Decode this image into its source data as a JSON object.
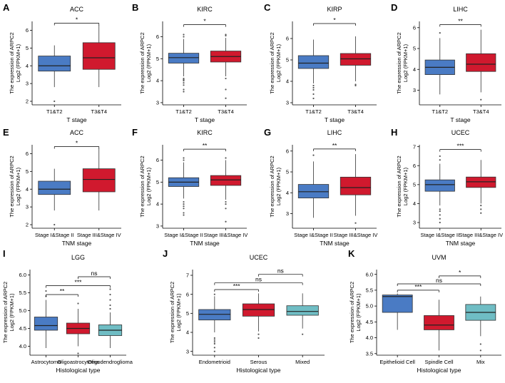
{
  "colors": {
    "blue": "#4a7bc4",
    "red": "#d0192e",
    "teal": "#6fbdc4"
  },
  "chart_data": [
    {
      "label": "A",
      "type": "box",
      "title": "ACC",
      "xlabel": "T stage",
      "ylabel_line1": "The expression of ARPC2",
      "ylabel_line2": "Log2 (FPKM+1)",
      "ylim": [
        1.8,
        6.5
      ],
      "yticks": [
        "2",
        "3",
        "4",
        "5",
        "6"
      ],
      "categories": [
        "T1&T2",
        "T3&T4"
      ],
      "boxes": [
        {
          "name": "T1&T2",
          "color": "blue",
          "min": 2.8,
          "q1": 3.7,
          "median": 4.0,
          "q3": 4.55,
          "max": 5.15,
          "outliers": [
            2.0
          ]
        },
        {
          "name": "T3&T4",
          "color": "red",
          "min": 2.8,
          "q1": 3.8,
          "median": 4.45,
          "q3": 5.3,
          "max": 6.3,
          "outliers": []
        }
      ],
      "comparisons": [
        {
          "from": 0,
          "to": 1,
          "label": "*",
          "y": 6.4
        }
      ]
    },
    {
      "label": "B",
      "type": "box",
      "title": "KIRC",
      "xlabel": "T stage",
      "ylabel_line1": "The expression of ARPC2",
      "ylabel_line2": "Log2 (FPKM+1)",
      "ylim": [
        2.9,
        6.7
      ],
      "yticks": [
        "3",
        "4",
        "5",
        "6"
      ],
      "categories": [
        "T1&T2",
        "T3&T4"
      ],
      "boxes": [
        {
          "name": "T1&T2",
          "color": "blue",
          "min": 4.2,
          "q1": 4.8,
          "median": 5.05,
          "q3": 5.25,
          "max": 5.9,
          "outliers": [
            3.5,
            3.6,
            3.8,
            3.9,
            4.0,
            4.05,
            4.1,
            6.0,
            6.1
          ]
        },
        {
          "name": "T3&T4",
          "color": "red",
          "min": 4.2,
          "q1": 4.85,
          "median": 5.1,
          "q3": 5.35,
          "max": 5.95,
          "outliers": [
            3.2,
            3.6,
            4.1,
            6.05,
            6.1
          ]
        }
      ],
      "comparisons": [
        {
          "from": 0,
          "to": 1,
          "label": "*",
          "y": 6.55
        }
      ]
    },
    {
      "label": "C",
      "type": "box",
      "title": "KIRP",
      "xlabel": "T stage",
      "ylabel_line1": "The expression of ARPC2",
      "ylabel_line2": "Log2 (FPKM+1)",
      "ylim": [
        2.9,
        6.8
      ],
      "yticks": [
        "3",
        "4",
        "5",
        "6"
      ],
      "categories": [
        "T1&T2",
        "T3&T4"
      ],
      "boxes": [
        {
          "name": "T1&T2",
          "color": "blue",
          "min": 3.9,
          "q1": 4.6,
          "median": 4.85,
          "q3": 5.2,
          "max": 5.95,
          "outliers": [
            3.2,
            3.4,
            3.6,
            3.7,
            3.8
          ]
        },
        {
          "name": "T3&T4",
          "color": "red",
          "min": 4.0,
          "q1": 4.75,
          "median": 5.05,
          "q3": 5.3,
          "max": 6.1,
          "outliers": [
            3.8,
            3.85
          ]
        }
      ],
      "comparisons": [
        {
          "from": 0,
          "to": 1,
          "label": "*",
          "y": 6.7
        }
      ]
    },
    {
      "label": "D",
      "type": "box",
      "title": "LIHC",
      "xlabel": "T stage",
      "ylabel_line1": "The expression of ARPC2",
      "ylabel_line2": "Log2 (FPKM+1)",
      "ylim": [
        2.3,
        6.3
      ],
      "yticks": [
        "3",
        "4",
        "5",
        "6"
      ],
      "categories": [
        "T1&T2",
        "T3&T4"
      ],
      "boxes": [
        {
          "name": "T1&T2",
          "color": "blue",
          "min": 2.8,
          "q1": 3.75,
          "median": 4.1,
          "q3": 4.45,
          "max": 5.5,
          "outliers": [
            5.75
          ]
        },
        {
          "name": "T3&T4",
          "color": "red",
          "min": 2.9,
          "q1": 3.9,
          "median": 4.25,
          "q3": 4.75,
          "max": 5.9,
          "outliers": [
            2.55
          ]
        }
      ],
      "comparisons": [
        {
          "from": 0,
          "to": 1,
          "label": "**",
          "y": 6.15
        }
      ]
    },
    {
      "label": "E",
      "type": "box",
      "title": "ACC",
      "xlabel": "TNM stage",
      "ylabel_line1": "The expression of ARPC2",
      "ylabel_line2": "Log2 (FPKM+1)",
      "ylim": [
        1.8,
        6.5
      ],
      "yticks": [
        "2",
        "3",
        "4",
        "5",
        "6"
      ],
      "categories": [
        "Stage I&Stage II",
        "Stage III&Stage IV"
      ],
      "boxes": [
        {
          "name": "Stage I&Stage II",
          "color": "blue",
          "min": 2.8,
          "q1": 3.7,
          "median": 4.0,
          "q3": 4.45,
          "max": 5.15,
          "outliers": [
            2.0
          ]
        },
        {
          "name": "Stage III&Stage IV",
          "color": "red",
          "min": 2.8,
          "q1": 3.85,
          "median": 4.55,
          "q3": 5.15,
          "max": 6.3,
          "outliers": []
        }
      ],
      "comparisons": [
        {
          "from": 0,
          "to": 1,
          "label": "*",
          "y": 6.4
        }
      ]
    },
    {
      "label": "F",
      "type": "box",
      "title": "KIRC",
      "xlabel": "TNM stage",
      "ylabel_line1": "The expression of ARPC2",
      "ylabel_line2": "Log2 (FPKM+1)",
      "ylim": [
        2.9,
        6.7
      ],
      "yticks": [
        "3",
        "4",
        "5",
        "6"
      ],
      "categories": [
        "Stage I&Stage II",
        "Stage III&Stage IV"
      ],
      "boxes": [
        {
          "name": "Stage I&Stage II",
          "color": "blue",
          "min": 4.25,
          "q1": 4.8,
          "median": 5.0,
          "q3": 5.2,
          "max": 5.9,
          "outliers": [
            3.5,
            3.6,
            3.8,
            3.9,
            4.0,
            4.1,
            6.0,
            6.1
          ]
        },
        {
          "name": "Stage III&Stage IV",
          "color": "red",
          "min": 4.2,
          "q1": 4.85,
          "median": 5.1,
          "q3": 5.3,
          "max": 6.0,
          "outliers": [
            3.2,
            3.8,
            4.0,
            4.1,
            6.1
          ]
        }
      ],
      "comparisons": [
        {
          "from": 0,
          "to": 1,
          "label": "**",
          "y": 6.5
        }
      ]
    },
    {
      "label": "G",
      "type": "box",
      "title": "LIHC",
      "xlabel": "TNM stage",
      "ylabel_line1": "The expression of ARPC2",
      "ylabel_line2": "Log2 (FPKM+1)",
      "ylim": [
        2.3,
        6.3
      ],
      "yticks": [
        "3",
        "4",
        "5",
        "6"
      ],
      "categories": [
        "Stage I&Stage II",
        "Stage III&Stage IV"
      ],
      "boxes": [
        {
          "name": "Stage I&Stage II",
          "color": "blue",
          "min": 2.8,
          "q1": 3.75,
          "median": 4.05,
          "q3": 4.4,
          "max": 5.5,
          "outliers": [
            5.8
          ]
        },
        {
          "name": "Stage III&Stage IV",
          "color": "red",
          "min": 2.9,
          "q1": 3.9,
          "median": 4.25,
          "q3": 4.75,
          "max": 5.85,
          "outliers": [
            2.55
          ]
        }
      ],
      "comparisons": [
        {
          "from": 0,
          "to": 1,
          "label": "**",
          "y": 6.1
        }
      ]
    },
    {
      "label": "H",
      "type": "box",
      "title": "UCEC",
      "xlabel": "TNM stage",
      "ylabel_line1": "The expression of ARPC2",
      "ylabel_line2": "Log2 (FPKM+1)",
      "ylim": [
        2.7,
        7.1
      ],
      "yticks": [
        "3",
        "4",
        "5",
        "6",
        "7"
      ],
      "categories": [
        "Stage I&Stage II",
        "Stage III&Stage IV"
      ],
      "boxes": [
        {
          "name": "Stage I&Stage II",
          "color": "blue",
          "min": 3.9,
          "q1": 4.65,
          "median": 5.0,
          "q3": 5.25,
          "max": 6.1,
          "outliers": [
            3.0,
            3.2,
            3.4,
            3.6,
            3.7,
            6.3,
            6.5
          ]
        },
        {
          "name": "Stage III&Stage IV",
          "color": "red",
          "min": 4.0,
          "q1": 4.85,
          "median": 5.15,
          "q3": 5.4,
          "max": 6.3,
          "outliers": [
            3.5,
            3.7,
            3.9
          ]
        }
      ],
      "comparisons": [
        {
          "from": 0,
          "to": 1,
          "label": "***",
          "y": 6.85
        }
      ]
    },
    {
      "label": "I",
      "type": "box",
      "title": "LGG",
      "xlabel": "Histological type",
      "ylabel_line1": "The expression of ARPC2",
      "ylabel_line2": "Log2 (FPKM+1)",
      "ylim": [
        3.75,
        6.15
      ],
      "yticks": [
        "4.0",
        "4.5",
        "5.0",
        "5.5",
        "6.0"
      ],
      "categories": [
        "Astrocytoma",
        "Oligoastrocytoma",
        "Oligodendroglioma"
      ],
      "boxes": [
        {
          "name": "Astrocytoma",
          "color": "blue",
          "min": 3.95,
          "q1": 4.45,
          "median": 4.58,
          "q3": 4.82,
          "max": 5.3,
          "outliers": [
            5.4,
            5.55
          ]
        },
        {
          "name": "Oligoastrocytoma",
          "color": "red",
          "min": 4.0,
          "q1": 4.35,
          "median": 4.5,
          "q3": 4.65,
          "max": 5.05,
          "outliers": [
            3.8,
            5.2
          ]
        },
        {
          "name": "Oligodendroglioma",
          "color": "teal",
          "min": 3.95,
          "q1": 4.3,
          "median": 4.45,
          "q3": 4.6,
          "max": 4.95,
          "outliers": [
            5.05,
            5.15,
            5.3,
            5.45,
            5.6
          ]
        }
      ],
      "comparisons": [
        {
          "from": 0,
          "to": 1,
          "label": "**",
          "y": 5.45
        },
        {
          "from": 0,
          "to": 2,
          "label": "***",
          "y": 5.7
        },
        {
          "from": 1,
          "to": 2,
          "label": "ns",
          "y": 5.95
        }
      ]
    },
    {
      "label": "J",
      "type": "box",
      "title": "UCEC",
      "xlabel": "Histological type",
      "ylabel_line1": "The expression of ARPC2",
      "ylabel_line2": "Log2 (FPKM+1)",
      "ylim": [
        2.8,
        7.3
      ],
      "yticks": [
        "3",
        "4",
        "5",
        "6",
        "7"
      ],
      "categories": [
        "Endometrioid",
        "Serous",
        "Mixed"
      ],
      "boxes": [
        {
          "name": "Endometrioid",
          "color": "blue",
          "min": 4.0,
          "q1": 4.65,
          "median": 4.95,
          "q3": 5.2,
          "max": 5.9,
          "outliers": [
            3.0,
            3.2,
            3.4,
            3.5,
            3.6,
            3.7,
            6.0
          ]
        },
        {
          "name": "Serous",
          "color": "red",
          "min": 4.05,
          "q1": 4.85,
          "median": 5.2,
          "q3": 5.5,
          "max": 6.05,
          "outliers": [
            3.7,
            3.9
          ]
        },
        {
          "name": "Mixed",
          "color": "teal",
          "min": 4.2,
          "q1": 4.9,
          "median": 5.1,
          "q3": 5.4,
          "max": 6.05,
          "outliers": [
            3.9
          ]
        }
      ],
      "comparisons": [
        {
          "from": 0,
          "to": 1,
          "label": "***",
          "y": 6.25
        },
        {
          "from": 0,
          "to": 2,
          "label": "ns",
          "y": 6.6
        },
        {
          "from": 1,
          "to": 2,
          "label": "ns",
          "y": 7.05
        }
      ]
    },
    {
      "label": "K",
      "type": "box",
      "title": "UVM",
      "xlabel": "Histological type",
      "ylabel_line1": "The expression of ARPC2",
      "ylabel_line2": "Log2 (FPKM+1)",
      "ylim": [
        3.45,
        6.15
      ],
      "yticks": [
        "3.5",
        "4.0",
        "4.5",
        "5.0",
        "5.5",
        "6.0"
      ],
      "categories": [
        "Epithelioid Cell",
        "Spindle Cell",
        "Mix"
      ],
      "boxes": [
        {
          "name": "Epithelioid Cell",
          "color": "blue",
          "min": 4.25,
          "q1": 4.8,
          "median": 5.3,
          "q3": 5.35,
          "max": 5.4,
          "outliers": []
        },
        {
          "name": "Spindle Cell",
          "color": "red",
          "min": 3.6,
          "q1": 4.25,
          "median": 4.4,
          "q3": 4.7,
          "max": 5.2,
          "outliers": []
        },
        {
          "name": "Mix",
          "color": "teal",
          "min": 4.05,
          "q1": 4.55,
          "median": 4.8,
          "q3": 5.05,
          "max": 5.3,
          "outliers": [
            3.8,
            3.6
          ]
        }
      ],
      "comparisons": [
        {
          "from": 0,
          "to": 1,
          "label": "***",
          "y": 5.5
        },
        {
          "from": 0,
          "to": 2,
          "label": "ns",
          "y": 5.7
        },
        {
          "from": 1,
          "to": 2,
          "label": "*",
          "y": 5.95
        }
      ]
    }
  ]
}
